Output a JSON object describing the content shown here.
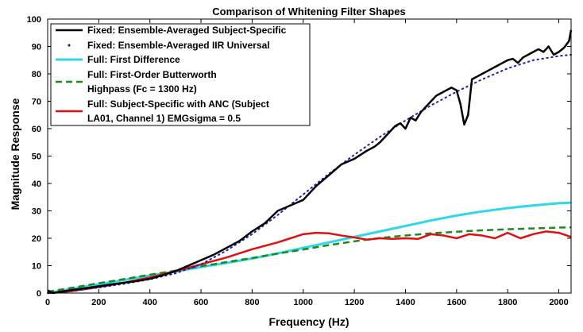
{
  "chart_data": {
    "type": "line",
    "title": "Comparison of Whitening Filter Shapes",
    "xlabel": "Frequency (Hz)",
    "ylabel": "Magnitude Response",
    "xlim": [
      0,
      2048
    ],
    "ylim": [
      0,
      100
    ],
    "xticks": [
      0,
      200,
      400,
      600,
      800,
      1000,
      1200,
      1400,
      1600,
      1800,
      2000
    ],
    "yticks": [
      0,
      10,
      20,
      30,
      40,
      50,
      60,
      70,
      80,
      90,
      100
    ],
    "grid": false,
    "legend_position": "top-left",
    "series": [
      {
        "name": "Fixed: Ensemble-Averaged Subject-Specific",
        "legend_lines": [
          "Fixed: Ensemble-Averaged Subject-Specific"
        ],
        "color": "#000000",
        "style": "solid",
        "x": [
          0,
          20,
          50,
          100,
          150,
          200,
          250,
          300,
          350,
          400,
          450,
          500,
          550,
          600,
          650,
          700,
          750,
          800,
          850,
          900,
          950,
          1000,
          1050,
          1100,
          1150,
          1200,
          1250,
          1280,
          1300,
          1320,
          1340,
          1360,
          1380,
          1400,
          1420,
          1440,
          1460,
          1480,
          1500,
          1520,
          1540,
          1560,
          1580,
          1600,
          1615,
          1630,
          1645,
          1660,
          1680,
          1700,
          1720,
          1740,
          1760,
          1780,
          1800,
          1820,
          1840,
          1860,
          1880,
          1900,
          1920,
          1940,
          1960,
          1980,
          2000,
          2020,
          2040,
          2048
        ],
        "y": [
          1,
          0,
          0.5,
          1.2,
          1.8,
          2.5,
          3.2,
          3.8,
          4.4,
          5.2,
          6.5,
          8.0,
          10,
          12,
          14,
          16.5,
          19,
          22.5,
          25.5,
          30,
          32,
          34,
          39,
          43,
          47,
          49,
          52,
          53.5,
          55,
          57,
          59,
          61,
          62,
          60,
          64,
          63,
          66,
          68,
          70,
          72,
          73,
          74,
          75,
          74,
          69,
          61.5,
          65,
          78,
          79,
          80,
          81,
          82,
          83,
          84,
          85,
          85.5,
          84,
          86,
          87,
          88,
          89,
          88,
          90,
          87,
          88,
          89.5,
          92,
          96
        ]
      },
      {
        "name": "Fixed: Ensemble-Averaged IIR Universal",
        "legend_lines": [
          "Fixed: Ensemble-Averaged IIR Universal"
        ],
        "color": "#1a1acc",
        "style": "dotted",
        "x": [
          0,
          100,
          200,
          300,
          400,
          500,
          600,
          700,
          800,
          900,
          1000,
          1100,
          1200,
          1300,
          1400,
          1500,
          1600,
          1700,
          1800,
          1900,
          2000,
          2048
        ],
        "y": [
          0,
          0.9,
          2.0,
          3.4,
          5.0,
          7.2,
          10.5,
          15.5,
          21.5,
          28.5,
          36,
          43.5,
          50.5,
          57,
          63,
          68.5,
          73.5,
          78,
          82,
          85,
          86.5,
          87
        ]
      },
      {
        "name": "Full: First Difference",
        "legend_lines": [
          "Full: First Difference"
        ],
        "color": "#2ed8e8",
        "style": "solid",
        "x": [
          0,
          100,
          200,
          300,
          400,
          500,
          600,
          700,
          800,
          900,
          1000,
          1100,
          1200,
          1300,
          1400,
          1500,
          1600,
          1700,
          1800,
          1900,
          2000,
          2048
        ],
        "y": [
          0,
          1.6,
          3.2,
          4.8,
          6.4,
          7.9,
          9.5,
          11.0,
          12.6,
          14.5,
          16.5,
          18.5,
          20.5,
          22.5,
          24.5,
          26.5,
          28.3,
          29.8,
          31.0,
          32.0,
          32.8,
          33.0
        ]
      },
      {
        "name": "Full: First-Order Butterworth Highpass (Fc = 1300 Hz)",
        "legend_lines": [
          "Full: First-Order Butterworth",
          "Highpass (Fc = 1300 Hz)"
        ],
        "color": "#1a8a1a",
        "style": "dashed",
        "x": [
          0,
          100,
          200,
          300,
          400,
          500,
          600,
          700,
          800,
          900,
          1000,
          1100,
          1200,
          1300,
          1400,
          1500,
          1600,
          1700,
          1800,
          1900,
          2000,
          2048
        ],
        "y": [
          0.5,
          2.0,
          3.6,
          5.1,
          6.7,
          8.2,
          9.8,
          11.3,
          12.8,
          14.4,
          15.9,
          17.5,
          18.9,
          20.1,
          21.0,
          21.8,
          22.4,
          22.9,
          23.3,
          23.6,
          23.9,
          24.0
        ]
      },
      {
        "name": "Full: Subject-Specific with ANC (Subject LA01, Channel 1) EMGsigma = 0.5",
        "legend_lines": [
          "Full: Subject-Specific with ANC (Subject",
          "LA01, Channel 1) EMGsigma = 0.5"
        ],
        "color": "#e01010",
        "style": "solid",
        "x": [
          0,
          50,
          100,
          200,
          300,
          400,
          500,
          600,
          700,
          800,
          900,
          950,
          1000,
          1050,
          1100,
          1150,
          1200,
          1250,
          1300,
          1350,
          1400,
          1450,
          1500,
          1550,
          1600,
          1650,
          1700,
          1750,
          1800,
          1850,
          1900,
          1950,
          2000,
          2048
        ],
        "y": [
          0,
          0.3,
          0.8,
          2.2,
          3.8,
          5.7,
          8.0,
          10.5,
          13.0,
          16.0,
          18.5,
          20.0,
          21.5,
          22.0,
          21.8,
          21.0,
          20.3,
          19.5,
          20.0,
          19.8,
          20.0,
          19.8,
          21.5,
          21.0,
          20.0,
          21.5,
          21.0,
          20.0,
          22.0,
          20.0,
          21.5,
          22.5,
          22.0,
          20.5
        ]
      }
    ]
  }
}
